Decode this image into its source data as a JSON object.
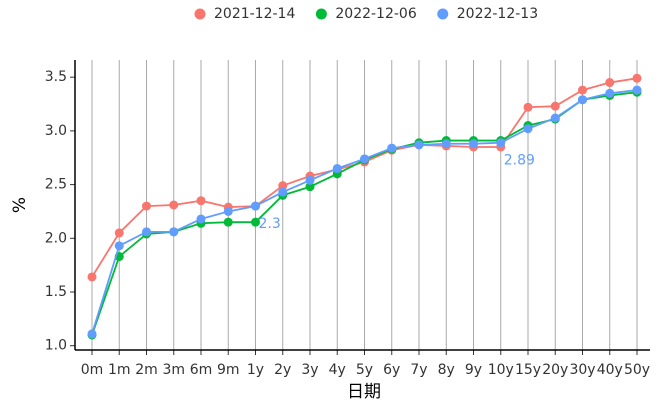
{
  "chart_data": {
    "type": "line",
    "categories": [
      "0m",
      "1m",
      "2m",
      "3m",
      "6m",
      "9m",
      "1y",
      "2y",
      "3y",
      "4y",
      "5y",
      "6y",
      "7y",
      "8y",
      "9y",
      "10y",
      "15y",
      "20y",
      "30y",
      "40y",
      "50y"
    ],
    "series": [
      {
        "name": "2021-12-14",
        "color": "#F8766D",
        "values": [
          1.64,
          2.05,
          2.3,
          2.31,
          2.35,
          2.29,
          2.3,
          2.49,
          2.58,
          2.64,
          2.71,
          2.82,
          2.87,
          2.86,
          2.85,
          2.85,
          3.22,
          3.23,
          3.38,
          3.45,
          3.49
        ]
      },
      {
        "name": "2022-12-06",
        "color": "#00BA38",
        "values": [
          1.1,
          1.83,
          2.04,
          2.06,
          2.14,
          2.15,
          2.15,
          2.4,
          2.48,
          2.6,
          2.73,
          2.83,
          2.89,
          2.91,
          2.91,
          2.91,
          3.05,
          3.11,
          3.29,
          3.33,
          3.36
        ]
      },
      {
        "name": "2022-12-13",
        "color": "#619CFF",
        "values": [
          1.11,
          1.93,
          2.06,
          2.06,
          2.18,
          2.25,
          2.3,
          2.43,
          2.54,
          2.65,
          2.74,
          2.84,
          2.87,
          2.88,
          2.88,
          2.89,
          3.02,
          3.12,
          3.29,
          3.35,
          3.38
        ],
        "value_labels": [
          null,
          null,
          null,
          null,
          null,
          null,
          "2.3",
          null,
          null,
          null,
          null,
          null,
          null,
          null,
          null,
          "2.89",
          null,
          null,
          null,
          null,
          null
        ]
      }
    ],
    "xlabel": "日期",
    "ylabel": "%",
    "ylim": [
      0.96,
      3.66
    ],
    "yticks": [
      {
        "value": 1.0,
        "label": "1.0"
      },
      1.5,
      {
        "value": 2.0,
        "label": "2.0"
      },
      2.5,
      {
        "value": 3.0,
        "label": "3.0"
      },
      3.5
    ],
    "grid_x": true,
    "legend": "top"
  }
}
